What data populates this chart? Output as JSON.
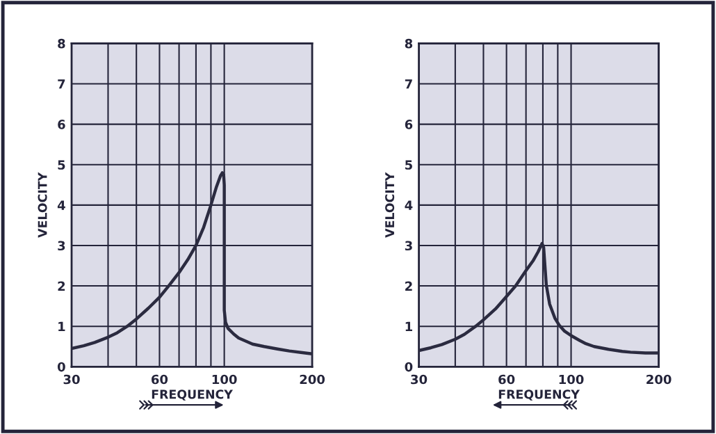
{
  "chart_data": [
    {
      "type": "line",
      "xlabel": "FREQUENCY",
      "ylabel": "VELOCITY",
      "log": "x",
      "grid": true,
      "xlim": [
        30,
        200
      ],
      "ylim": [
        0,
        8
      ],
      "xticks": [
        30,
        {
          "value": 40,
          "label": null
        },
        {
          "value": 50,
          "label": null
        },
        60,
        {
          "value": 70,
          "label": null
        },
        {
          "value": 80,
          "label": null
        },
        {
          "value": 90,
          "label": null
        },
        100,
        200
      ],
      "yticks": [
        0,
        1,
        2,
        3,
        4,
        5,
        6,
        7,
        8
      ],
      "x": [
        30,
        33,
        36,
        40,
        43,
        46.5,
        50,
        55,
        60,
        64.5,
        70,
        75,
        80,
        85,
        90,
        94,
        97,
        98.5,
        99.5,
        100,
        100,
        101,
        103,
        107.7,
        112,
        118.9,
        125,
        137,
        152,
        167,
        185,
        200
      ],
      "series": [
        {
          "color": "#2b2b40",
          "values": [
            0.45,
            0.52,
            0.6,
            0.73,
            0.84,
            1.0,
            1.18,
            1.45,
            1.72,
            2.0,
            2.33,
            2.65,
            3.0,
            3.45,
            4.0,
            4.45,
            4.72,
            4.8,
            4.75,
            4.5,
            1.4,
            1.1,
            0.95,
            0.81,
            0.71,
            0.63,
            0.56,
            0.5,
            0.44,
            0.39,
            0.35,
            0.32
          ]
        }
      ]
    },
    {
      "type": "line",
      "xlabel": "FREQUENCY",
      "ylabel": "VELOCITY",
      "log": "x",
      "grid": true,
      "xlim": [
        30,
        200
      ],
      "ylim": [
        0,
        8
      ],
      "xticks": [
        30,
        {
          "value": 40,
          "label": null
        },
        {
          "value": 50,
          "label": null
        },
        60,
        {
          "value": 70,
          "label": null
        },
        {
          "value": 80,
          "label": null
        },
        {
          "value": 90,
          "label": null
        },
        100,
        200
      ],
      "yticks": [
        0,
        1,
        2,
        3,
        4,
        5,
        6,
        7,
        8
      ],
      "x": [
        30,
        33,
        36,
        40,
        43,
        47,
        50,
        55,
        60,
        64.5,
        70,
        74,
        77,
        79.5,
        80.5,
        81.5,
        82.2,
        84.4,
        88,
        91,
        95,
        100,
        107,
        112.5,
        120,
        134.5,
        150,
        160,
        180,
        200
      ],
      "series": [
        {
          "color": "#2b2b40",
          "values": [
            0.4,
            0.47,
            0.55,
            0.68,
            0.8,
            1.0,
            1.16,
            1.43,
            1.74,
            2.0,
            2.38,
            2.62,
            2.84,
            3.05,
            2.95,
            2.4,
            2.02,
            1.55,
            1.2,
            1.03,
            0.88,
            0.77,
            0.65,
            0.57,
            0.5,
            0.43,
            0.38,
            0.36,
            0.34,
            0.34
          ]
        }
      ]
    }
  ]
}
